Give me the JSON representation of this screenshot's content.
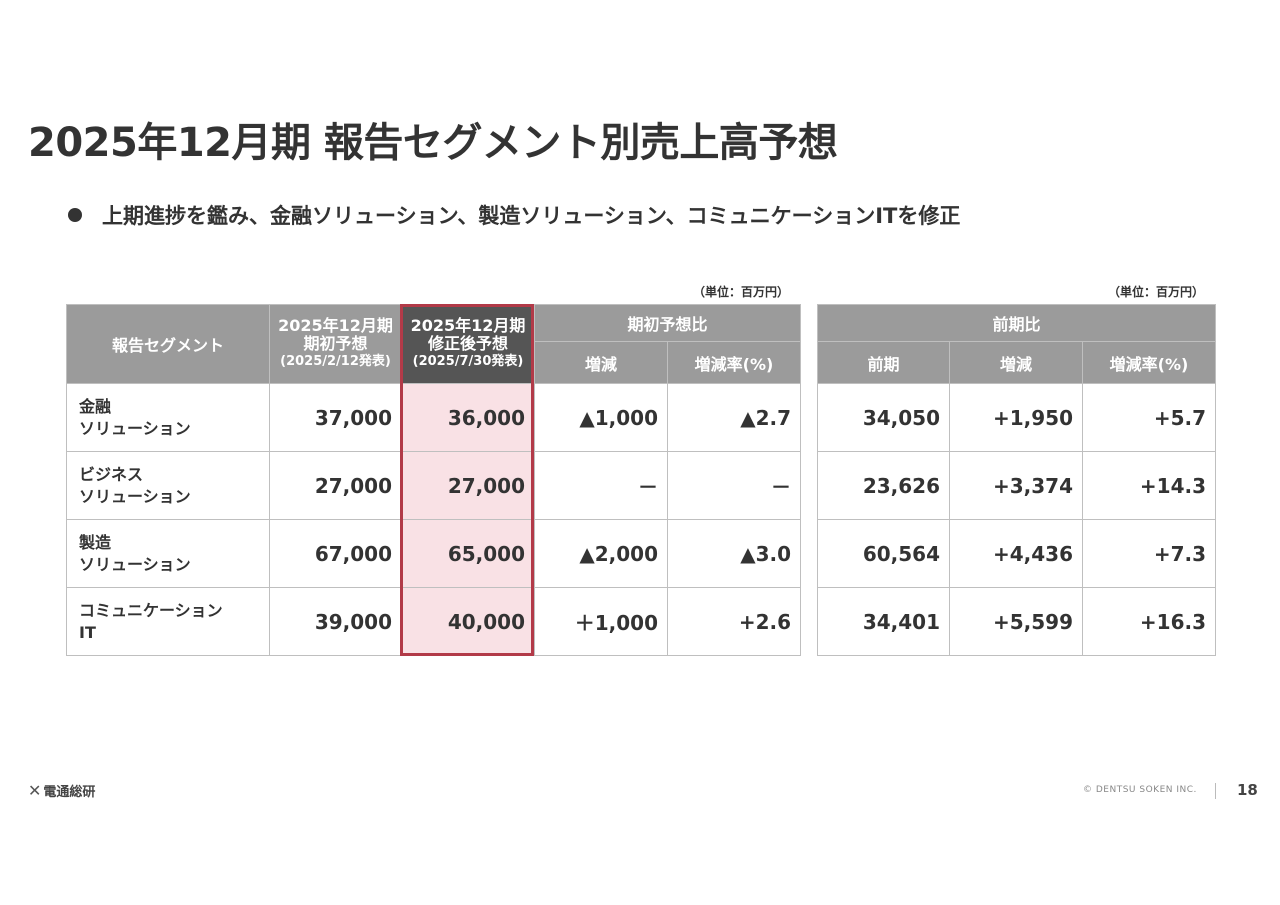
{
  "title": "2025年12月期 報告セグメント別売上高予想",
  "bullet": "上期進捗を鑑み、金融ソリューション、製造ソリューション、コミュニケーションITを修正",
  "unit_label": "（単位：百万円）",
  "left_table": {
    "headers": {
      "segment": "報告セグメント",
      "initial_line1": "2025年12月期",
      "initial_line2": "期初予想",
      "initial_line3": "(2025/2/12発表)",
      "revised_line1": "2025年12月期",
      "revised_line2": "修正後予想",
      "revised_line3": "(2025/7/30発表)",
      "vs_initial": "期初予想比",
      "change": "増減",
      "change_rate": "増減率(%)"
    },
    "rows": [
      {
        "segment_line1": "金融",
        "segment_line2": "ソリューション",
        "initial": "37,000",
        "revised": "36,000",
        "change": "▲1,000",
        "rate": "▲2.7"
      },
      {
        "segment_line1": "ビジネス",
        "segment_line2": "ソリューション",
        "initial": "27,000",
        "revised": "27,000",
        "change": "－",
        "rate": "－"
      },
      {
        "segment_line1": "製造",
        "segment_line2": "ソリューション",
        "initial": "67,000",
        "revised": "65,000",
        "change": "▲2,000",
        "rate": "▲3.0"
      },
      {
        "segment_line1": "コミュニケーション",
        "segment_line2": "IT",
        "initial": "39,000",
        "revised": "40,000",
        "change": "＋1,000",
        "rate": "+2.6"
      }
    ]
  },
  "right_table": {
    "headers": {
      "vs_prior": "前期比",
      "prior": "前期",
      "change": "増減",
      "change_rate": "増減率(%)"
    },
    "rows": [
      {
        "prior": "34,050",
        "change": "+1,950",
        "rate": "+5.7"
      },
      {
        "prior": "23,626",
        "change": "+3,374",
        "rate": "+14.3"
      },
      {
        "prior": "60,564",
        "change": "+4,436",
        "rate": "+7.3"
      },
      {
        "prior": "34,401",
        "change": "+5,599",
        "rate": "+16.3"
      }
    ]
  },
  "footer": {
    "logo_text": "電通総研",
    "copyright": "© DENTSU SOKEN INC.",
    "page_number": "18"
  },
  "colors": {
    "header_gray": "#9b9b9b",
    "header_dark": "#555555",
    "highlight_fill": "#f9e1e5",
    "highlight_border": "#b23a48"
  }
}
